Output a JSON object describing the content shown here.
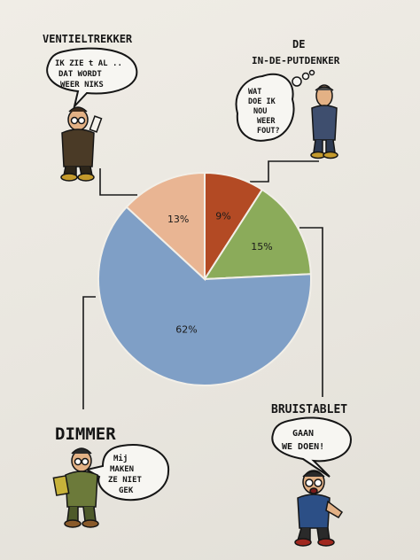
{
  "chart_data": {
    "type": "pie",
    "title": "",
    "start_angle_deg": 0,
    "slices": [
      {
        "name": "Bruistablet",
        "value": 9,
        "label": "9%",
        "color": "#b34a24"
      },
      {
        "name": "De in-de-put-denker",
        "value": 15,
        "label": "15%",
        "color": "#8bab5a"
      },
      {
        "name": "Dimmer",
        "value": 62,
        "label": "62%",
        "color": "#7f9fc6"
      },
      {
        "name": "Ventieltrekker",
        "value": 13,
        "label": "13%",
        "color": "#e9b593"
      }
    ]
  },
  "characters": {
    "ventieltrekker": {
      "title": "VENTIELTREKKER",
      "bubble": [
        "IK ZIE t AL ..",
        "DAT WORDT",
        "WEER NIKS"
      ]
    },
    "put_denker": {
      "title_line1": "DE",
      "title_line2": "IN-DE-PUTDENKER",
      "bubble": [
        "WAT",
        "DOE IK",
        "NOU",
        "WEER",
        "FOUT?"
      ]
    },
    "dimmer": {
      "title": "DIMMER",
      "bubble": [
        "Mij",
        "MAKEN",
        "ZE NIET",
        "GEK"
      ]
    },
    "bruistablet": {
      "title": "BRUISTABLET",
      "bubble": [
        "GAAN",
        "WE DOEN!"
      ]
    }
  }
}
